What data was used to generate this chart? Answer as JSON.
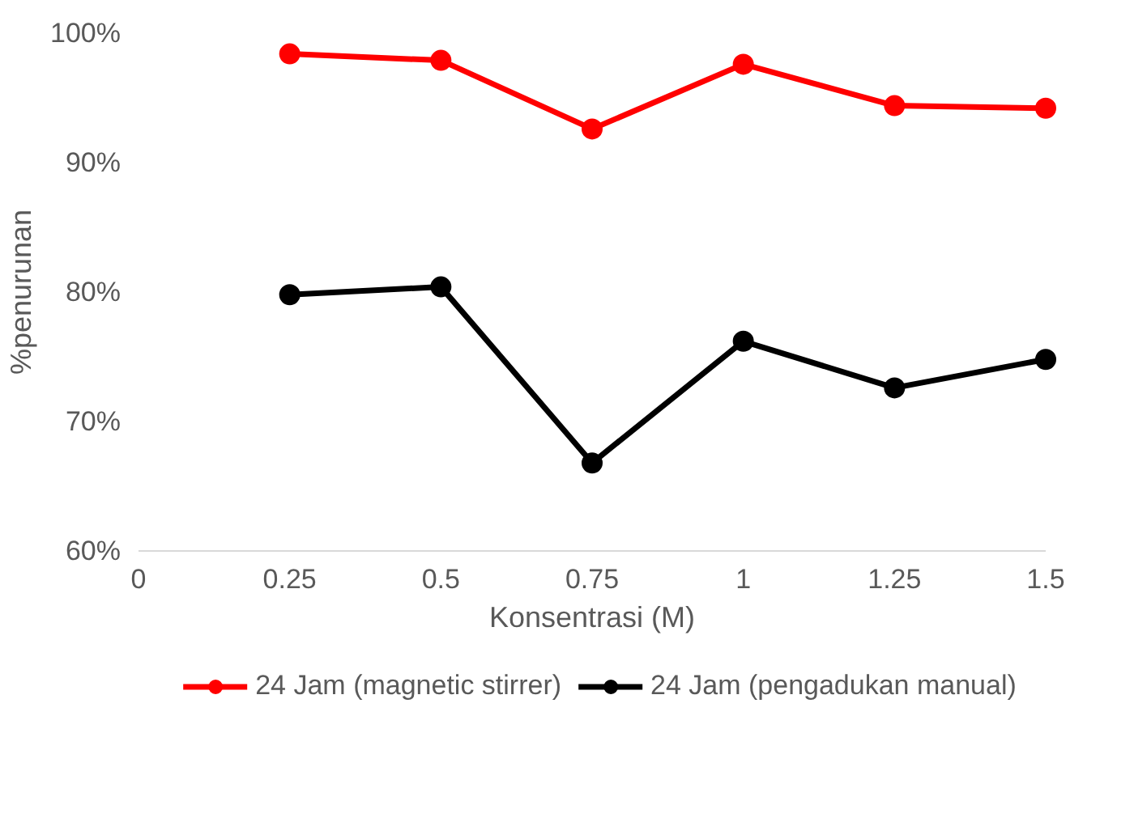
{
  "chart_data": {
    "type": "line",
    "xlabel": "Konsentrasi (M)",
    "ylabel": "%penurunan",
    "x": [
      0.25,
      0.5,
      0.75,
      1,
      1.25,
      1.5
    ],
    "series": [
      {
        "name": "24 Jam (magnetic stirrer)",
        "color": "#ff0000",
        "values": [
          98.4,
          97.9,
          92.6,
          97.6,
          94.4,
          94.2
        ]
      },
      {
        "name": "24 Jam (pengadukan manual)",
        "color": "#000000",
        "values": [
          79.8,
          80.4,
          66.8,
          76.2,
          72.6,
          74.8
        ]
      }
    ],
    "xlim": [
      0,
      1.5
    ],
    "xticks": [
      0,
      0.25,
      0.5,
      0.75,
      1,
      1.25,
      1.5
    ],
    "ylim": [
      60,
      100
    ],
    "yticks": [
      {
        "value": 60,
        "label": "60%"
      },
      {
        "value": 70,
        "label": "70%"
      },
      {
        "value": 80,
        "label": "80%"
      },
      {
        "value": 90,
        "label": "90%"
      },
      {
        "value": 100,
        "label": "100%"
      }
    ],
    "grid": false,
    "legend": "bottom",
    "marker": "circle",
    "line_style": "solid"
  }
}
